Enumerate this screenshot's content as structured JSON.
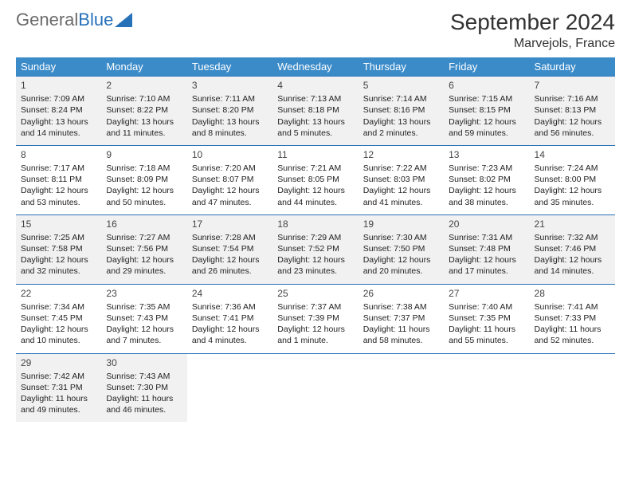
{
  "logo": {
    "text_gray": "General",
    "text_blue": "Blue"
  },
  "title": "September 2024",
  "location": "Marvejols, France",
  "colors": {
    "header_bg": "#3b8bc9",
    "border": "#2671b8",
    "shade": "#f1f1f1",
    "text": "#222222"
  },
  "day_headers": [
    "Sunday",
    "Monday",
    "Tuesday",
    "Wednesday",
    "Thursday",
    "Friday",
    "Saturday"
  ],
  "days": {
    "1": {
      "sunrise": "7:09 AM",
      "sunset": "8:24 PM",
      "daylight": "13 hours and 14 minutes."
    },
    "2": {
      "sunrise": "7:10 AM",
      "sunset": "8:22 PM",
      "daylight": "13 hours and 11 minutes."
    },
    "3": {
      "sunrise": "7:11 AM",
      "sunset": "8:20 PM",
      "daylight": "13 hours and 8 minutes."
    },
    "4": {
      "sunrise": "7:13 AM",
      "sunset": "8:18 PM",
      "daylight": "13 hours and 5 minutes."
    },
    "5": {
      "sunrise": "7:14 AM",
      "sunset": "8:16 PM",
      "daylight": "13 hours and 2 minutes."
    },
    "6": {
      "sunrise": "7:15 AM",
      "sunset": "8:15 PM",
      "daylight": "12 hours and 59 minutes."
    },
    "7": {
      "sunrise": "7:16 AM",
      "sunset": "8:13 PM",
      "daylight": "12 hours and 56 minutes."
    },
    "8": {
      "sunrise": "7:17 AM",
      "sunset": "8:11 PM",
      "daylight": "12 hours and 53 minutes."
    },
    "9": {
      "sunrise": "7:18 AM",
      "sunset": "8:09 PM",
      "daylight": "12 hours and 50 minutes."
    },
    "10": {
      "sunrise": "7:20 AM",
      "sunset": "8:07 PM",
      "daylight": "12 hours and 47 minutes."
    },
    "11": {
      "sunrise": "7:21 AM",
      "sunset": "8:05 PM",
      "daylight": "12 hours and 44 minutes."
    },
    "12": {
      "sunrise": "7:22 AM",
      "sunset": "8:03 PM",
      "daylight": "12 hours and 41 minutes."
    },
    "13": {
      "sunrise": "7:23 AM",
      "sunset": "8:02 PM",
      "daylight": "12 hours and 38 minutes."
    },
    "14": {
      "sunrise": "7:24 AM",
      "sunset": "8:00 PM",
      "daylight": "12 hours and 35 minutes."
    },
    "15": {
      "sunrise": "7:25 AM",
      "sunset": "7:58 PM",
      "daylight": "12 hours and 32 minutes."
    },
    "16": {
      "sunrise": "7:27 AM",
      "sunset": "7:56 PM",
      "daylight": "12 hours and 29 minutes."
    },
    "17": {
      "sunrise": "7:28 AM",
      "sunset": "7:54 PM",
      "daylight": "12 hours and 26 minutes."
    },
    "18": {
      "sunrise": "7:29 AM",
      "sunset": "7:52 PM",
      "daylight": "12 hours and 23 minutes."
    },
    "19": {
      "sunrise": "7:30 AM",
      "sunset": "7:50 PM",
      "daylight": "12 hours and 20 minutes."
    },
    "20": {
      "sunrise": "7:31 AM",
      "sunset": "7:48 PM",
      "daylight": "12 hours and 17 minutes."
    },
    "21": {
      "sunrise": "7:32 AM",
      "sunset": "7:46 PM",
      "daylight": "12 hours and 14 minutes."
    },
    "22": {
      "sunrise": "7:34 AM",
      "sunset": "7:45 PM",
      "daylight": "12 hours and 10 minutes."
    },
    "23": {
      "sunrise": "7:35 AM",
      "sunset": "7:43 PM",
      "daylight": "12 hours and 7 minutes."
    },
    "24": {
      "sunrise": "7:36 AM",
      "sunset": "7:41 PM",
      "daylight": "12 hours and 4 minutes."
    },
    "25": {
      "sunrise": "7:37 AM",
      "sunset": "7:39 PM",
      "daylight": "12 hours and 1 minute."
    },
    "26": {
      "sunrise": "7:38 AM",
      "sunset": "7:37 PM",
      "daylight": "11 hours and 58 minutes."
    },
    "27": {
      "sunrise": "7:40 AM",
      "sunset": "7:35 PM",
      "daylight": "11 hours and 55 minutes."
    },
    "28": {
      "sunrise": "7:41 AM",
      "sunset": "7:33 PM",
      "daylight": "11 hours and 52 minutes."
    },
    "29": {
      "sunrise": "7:42 AM",
      "sunset": "7:31 PM",
      "daylight": "11 hours and 49 minutes."
    },
    "30": {
      "sunrise": "7:43 AM",
      "sunset": "7:30 PM",
      "daylight": "11 hours and 46 minutes."
    }
  },
  "labels": {
    "sunrise": "Sunrise: ",
    "sunset": "Sunset: ",
    "daylight": "Daylight: "
  },
  "weeks": [
    [
      1,
      2,
      3,
      4,
      5,
      6,
      7
    ],
    [
      8,
      9,
      10,
      11,
      12,
      13,
      14
    ],
    [
      15,
      16,
      17,
      18,
      19,
      20,
      21
    ],
    [
      22,
      23,
      24,
      25,
      26,
      27,
      28
    ],
    [
      29,
      30,
      null,
      null,
      null,
      null,
      null
    ]
  ]
}
